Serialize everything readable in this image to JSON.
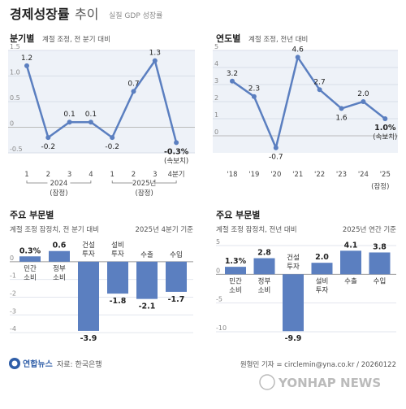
{
  "header": {
    "title_bold": "경제성장률",
    "title_light": "추이",
    "subtitle": "실질 GDP 성장률"
  },
  "footer": {
    "logo_text": "연합뉴스",
    "source": "자료: 한국은행",
    "credit": "원형민 기자 = circlemin@yna.co.kr / 20260122",
    "watermark": "YONHAP NEWS"
  },
  "colors": {
    "accent": "#4a6fb5",
    "line": "#5b7fc0",
    "axis": "#555555",
    "bar": "#5b7fc0"
  },
  "chart_data": [
    {
      "id": "quarterly",
      "type": "line",
      "title": "분기별",
      "subtitle": "계절 조정, 전 분기 대비",
      "x": [
        "1",
        "2",
        "3",
        "4",
        "1",
        "2",
        "3",
        "4분기"
      ],
      "values": [
        1.2,
        -0.2,
        0.1,
        0.1,
        -0.2,
        0.7,
        1.3,
        -0.3
      ],
      "value_labels": [
        "1.2",
        "-0.2",
        "0.1",
        "0.1",
        "-0.2",
        "0.7",
        "1.3",
        "-0.3%"
      ],
      "last_note": "(속보치)",
      "year_groups": [
        {
          "label": "2024",
          "sub": "(잠정)"
        },
        {
          "label": "2025년",
          "sub": "(잠정)"
        }
      ],
      "ylim": [
        -0.5,
        1.5
      ],
      "yticks": [
        1.5,
        1.0,
        0.5,
        0,
        -0.5
      ],
      "ytick_labels": [
        "1.5",
        "1.0",
        "0.5",
        "0",
        "-0.5"
      ]
    },
    {
      "id": "annual",
      "type": "line",
      "title": "연도별",
      "subtitle": "계절 조정, 전년 대비",
      "x": [
        "'18",
        "'19",
        "'20",
        "'21",
        "'22",
        "'23",
        "'24",
        "'25"
      ],
      "values": [
        3.2,
        2.3,
        -0.7,
        4.6,
        2.7,
        1.6,
        2.0,
        1.0
      ],
      "value_labels": [
        "3.2",
        "2.3",
        "-0.7",
        "4.6",
        "2.7",
        "1.6",
        "2.0",
        "1.0%"
      ],
      "last_note": "(속보치)",
      "x_note": "(잠정)",
      "ylim": [
        -1,
        5
      ],
      "yticks": [
        5,
        4,
        3,
        2,
        1,
        0
      ],
      "ytick_labels": [
        "5",
        "4",
        "3",
        "2",
        "1",
        "0"
      ]
    },
    {
      "id": "sector_quarter",
      "type": "bar",
      "title": "주요 부문별",
      "subtitle": "계절 조정 잠정치, 전 분기 대비",
      "basis": "2025년 4분기 기준",
      "categories": [
        [
          "민간",
          "소비"
        ],
        [
          "정부",
          "소비"
        ],
        [
          "건설",
          "투자"
        ],
        [
          "설비",
          "투자"
        ],
        [
          "수출"
        ],
        [
          "수입"
        ]
      ],
      "values": [
        0.3,
        0.6,
        -3.9,
        -1.8,
        -2.1,
        -1.7
      ],
      "value_labels": [
        "0.3%",
        "0.6",
        "-3.9",
        "-1.8",
        "-2.1",
        "-1.7"
      ],
      "ylim": [
        -4.5,
        1
      ],
      "yticks": [
        0,
        -1,
        -2,
        -3,
        -4
      ],
      "ytick_labels": [
        "0",
        "-1",
        "-2",
        "-3",
        "-4"
      ]
    },
    {
      "id": "sector_annual",
      "type": "bar",
      "title": "주요 부문별",
      "subtitle": "계절 조정 잠정치, 전년 대비",
      "basis": "2025년 연간 기준",
      "categories": [
        [
          "민간",
          "소비"
        ],
        [
          "정부",
          "소비"
        ],
        [
          "건설",
          "투자"
        ],
        [
          "설비",
          "투자"
        ],
        [
          "수출"
        ],
        [
          "수입"
        ]
      ],
      "values": [
        1.3,
        2.8,
        -9.9,
        2.0,
        4.1,
        3.8
      ],
      "value_labels": [
        "1.3%",
        "2.8",
        "-9.9",
        "2.0",
        "4.1",
        "3.8"
      ],
      "ylim": [
        -11,
        5
      ],
      "yticks": [
        5,
        0,
        -5,
        -10
      ],
      "ytick_labels": [
        "5",
        "0",
        "-5",
        "-10"
      ]
    }
  ]
}
